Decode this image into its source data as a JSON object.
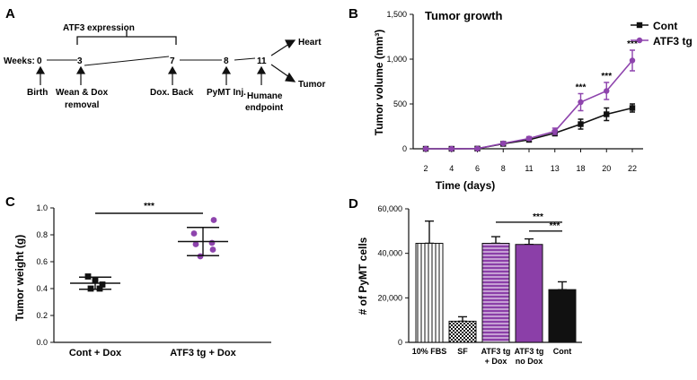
{
  "colors": {
    "cont": "#111111",
    "atf3": "#8e44ad",
    "atf3_bar": "#8b3fa8",
    "black": "#111111"
  },
  "panel_a": {
    "letter": "A",
    "bracket_label": "ATF3 expression",
    "weeks_label": "Weeks:",
    "weeks": [
      "0",
      "3",
      "7",
      "8",
      "11"
    ],
    "events": [
      "Birth",
      "Wean & Dox",
      "removal",
      "Dox. Back",
      "PyMT Inj.",
      "Humane",
      "endpoint"
    ],
    "outcomes": [
      "Heart",
      "Tumor"
    ]
  },
  "chart_data": [
    {
      "panel": "B",
      "type": "line",
      "title": "Tumor growth",
      "xlabel": "Time (days)",
      "ylabel": "Tumor volume (mm³)",
      "categories": [
        "2",
        "4",
        "6",
        "8",
        "11",
        "13",
        "18",
        "20",
        "22"
      ],
      "ylim": [
        0,
        1500
      ],
      "yticks": [
        "0",
        "500",
        "1,000",
        "1,500"
      ],
      "series": [
        {
          "name": "Cont",
          "values": [
            0,
            0,
            2,
            55,
            100,
            175,
            275,
            385,
            455
          ],
          "errors": [
            0,
            0,
            2,
            10,
            20,
            30,
            55,
            70,
            45
          ],
          "marker": "square"
        },
        {
          "name": "ATF3 tg",
          "values": [
            0,
            0,
            2,
            60,
            115,
            195,
            520,
            645,
            985
          ],
          "errors": [
            0,
            0,
            2,
            10,
            20,
            35,
            95,
            95,
            115
          ],
          "marker": "circle"
        }
      ],
      "significance": [
        {
          "category": "18",
          "label": "***"
        },
        {
          "category": "20",
          "label": "***"
        },
        {
          "category": "22",
          "label": "***"
        }
      ]
    },
    {
      "panel": "C",
      "type": "scatter",
      "ylabel": "Tumor weight (g)",
      "categories": [
        "Cont + Dox",
        "ATF3 tg + Dox"
      ],
      "ylim": [
        0,
        1.0
      ],
      "yticks": [
        "0.0",
        "0.2",
        "0.4",
        "0.6",
        "0.8",
        "1.0"
      ],
      "groups": [
        {
          "name": "Cont + Dox",
          "points": [
            0.49,
            0.46,
            0.43,
            0.4,
            0.4
          ],
          "mean": 0.44,
          "sd": 0.045,
          "marker": "square"
        },
        {
          "name": "ATF3 tg + Dox",
          "points": [
            0.91,
            0.81,
            0.74,
            0.73,
            0.69,
            0.64
          ],
          "mean": 0.75,
          "sd": 0.105,
          "marker": "circle"
        }
      ],
      "significance": [
        {
          "between": [
            "Cont + Dox",
            "ATF3 tg + Dox"
          ],
          "label": "***"
        }
      ]
    },
    {
      "panel": "D",
      "type": "bar",
      "ylabel": "# of PyMT cells",
      "categories": [
        "10% FBS",
        "SF",
        "ATF3 tg + Dox",
        "ATF3 tg no Dox",
        "Cont"
      ],
      "category_lines": [
        [
          "10% FBS"
        ],
        [
          "SF"
        ],
        [
          "ATF3 tg",
          "+ Dox"
        ],
        [
          "ATF3 tg",
          "no Dox"
        ],
        [
          "Cont"
        ]
      ],
      "values": [
        44500,
        9500,
        44500,
        44000,
        23700
      ],
      "errors": [
        10000,
        2000,
        3000,
        2500,
        3500
      ],
      "patterns": [
        "vstripes",
        "checker",
        "hstripes",
        "solid-purple",
        "solid-black"
      ],
      "ylim": [
        0,
        60000
      ],
      "yticks": [
        "0",
        "20,000",
        "40,000",
        "60,000"
      ],
      "significance": [
        {
          "between": [
            "ATF3 tg + Dox",
            "Cont"
          ],
          "label": "***"
        },
        {
          "between": [
            "ATF3 tg no Dox",
            "Cont"
          ],
          "label": "***"
        }
      ]
    }
  ]
}
